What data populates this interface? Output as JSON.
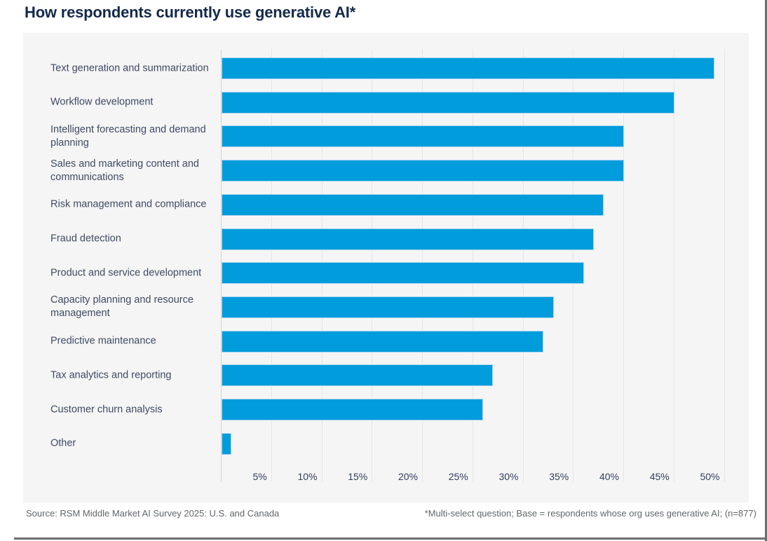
{
  "page": {
    "title": "How respondents currently use generative AI*"
  },
  "chart_data": {
    "type": "bar",
    "orientation": "horizontal",
    "title": "How respondents currently use generative AI*",
    "xlabel": "",
    "ylabel": "",
    "unit": "%",
    "categories": [
      "Text generation and summarization",
      "Workflow development",
      "Intelligent forecasting and demand planning",
      "Sales and marketing content and communications",
      "Risk management and compliance",
      "Fraud detection",
      "Product and service development",
      "Capacity planning and resource management",
      "Predictive maintenance",
      "Tax analytics and reporting",
      "Customer churn analysis",
      "Other"
    ],
    "values": [
      49,
      45,
      40,
      40,
      38,
      37,
      36,
      33,
      32,
      27,
      26,
      1
    ],
    "x_ticks": [
      "5%",
      "10%",
      "15%",
      "20%",
      "25%",
      "30%",
      "35%",
      "40%",
      "45%",
      "50%"
    ],
    "xlim": [
      0,
      52.5
    ],
    "grid": true,
    "legend": "none",
    "bar_color": "#009CDB",
    "bar_border_color": "#A7D4EF",
    "plot_background": "#F5F5F5",
    "title_color": "#14294B",
    "label_color": "#3E4A63"
  },
  "footer": {
    "source": "Source: RSM Middle Market AI Survey 2025: U.S. and Canada",
    "note": "*Multi-select question; Base = respondents whose org uses generative AI; (n=877)"
  }
}
